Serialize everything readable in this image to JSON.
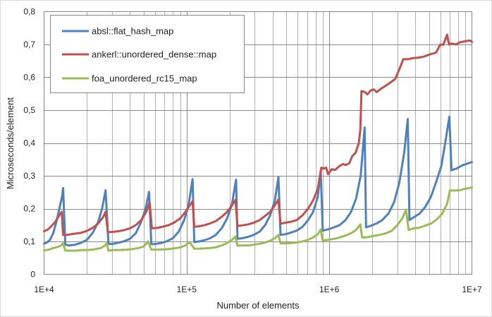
{
  "chart_data": {
    "type": "line",
    "title": "",
    "xlabel": "Number of elements",
    "ylabel": "Microseconds/element",
    "xscale": "log",
    "xlim": [
      10000,
      10000000
    ],
    "ylim": [
      0,
      0.8
    ],
    "yticks": [
      "0",
      "0,1",
      "0,2",
      "0,3",
      "0,4",
      "0,5",
      "0,6",
      "0,7",
      "0,8"
    ],
    "xticks": [
      {
        "value": 10000,
        "label": "1E+4"
      },
      {
        "value": 100000,
        "label": "1E+5"
      },
      {
        "value": 1000000,
        "label": "1E+6"
      },
      {
        "value": 10000000,
        "label": "1E+7"
      }
    ],
    "grid": true,
    "legend_position": "top-left",
    "series": [
      {
        "name": "absl::flat_hash_map",
        "color": "#4f81bd",
        "points": [
          [
            10000,
            0.093
          ],
          [
            10500,
            0.097
          ],
          [
            11000,
            0.105
          ],
          [
            11600,
            0.125
          ],
          [
            12200,
            0.16
          ],
          [
            12800,
            0.2
          ],
          [
            13400,
            0.238
          ],
          [
            13600,
            0.263
          ],
          [
            14100,
            0.09
          ],
          [
            15000,
            0.088
          ],
          [
            16500,
            0.09
          ],
          [
            18000,
            0.095
          ],
          [
            20000,
            0.105
          ],
          [
            22000,
            0.127
          ],
          [
            24000,
            0.16
          ],
          [
            25500,
            0.2
          ],
          [
            27000,
            0.256
          ],
          [
            28300,
            0.093
          ],
          [
            30000,
            0.092
          ],
          [
            33000,
            0.096
          ],
          [
            36000,
            0.1
          ],
          [
            40000,
            0.108
          ],
          [
            44000,
            0.125
          ],
          [
            48000,
            0.16
          ],
          [
            51500,
            0.2
          ],
          [
            54500,
            0.251
          ],
          [
            56500,
            0.092
          ],
          [
            60000,
            0.092
          ],
          [
            66000,
            0.095
          ],
          [
            72000,
            0.1
          ],
          [
            80000,
            0.11
          ],
          [
            88000,
            0.13
          ],
          [
            96000,
            0.165
          ],
          [
            103000,
            0.21
          ],
          [
            110000,
            0.29
          ],
          [
            113000,
            0.098
          ],
          [
            122000,
            0.1
          ],
          [
            134000,
            0.104
          ],
          [
            146000,
            0.11
          ],
          [
            160000,
            0.12
          ],
          [
            176000,
            0.14
          ],
          [
            192000,
            0.17
          ],
          [
            208000,
            0.215
          ],
          [
            222000,
            0.288
          ],
          [
            227000,
            0.108
          ],
          [
            245000,
            0.11
          ],
          [
            270000,
            0.114
          ],
          [
            295000,
            0.12
          ],
          [
            325000,
            0.13
          ],
          [
            355000,
            0.15
          ],
          [
            385000,
            0.18
          ],
          [
            415000,
            0.225
          ],
          [
            440000,
            0.296
          ],
          [
            455000,
            0.12
          ],
          [
            490000,
            0.122
          ],
          [
            540000,
            0.127
          ],
          [
            590000,
            0.133
          ],
          [
            650000,
            0.145
          ],
          [
            710000,
            0.165
          ],
          [
            770000,
            0.19
          ],
          [
            830000,
            0.235
          ],
          [
            870000,
            0.315
          ],
          [
            900000,
            0.133
          ],
          [
            980000,
            0.137
          ],
          [
            1080000,
            0.143
          ],
          [
            1180000,
            0.15
          ],
          [
            1300000,
            0.165
          ],
          [
            1420000,
            0.19
          ],
          [
            1540000,
            0.23
          ],
          [
            1660000,
            0.3
          ],
          [
            1770000,
            0.447
          ],
          [
            1810000,
            0.143
          ],
          [
            1960000,
            0.148
          ],
          [
            2150000,
            0.155
          ],
          [
            2350000,
            0.165
          ],
          [
            2600000,
            0.185
          ],
          [
            2850000,
            0.22
          ],
          [
            3100000,
            0.28
          ],
          [
            3350000,
            0.37
          ],
          [
            3550000,
            0.473
          ],
          [
            3650000,
            0.165
          ],
          [
            3950000,
            0.175
          ],
          [
            4300000,
            0.185
          ],
          [
            4700000,
            0.205
          ],
          [
            5150000,
            0.235
          ],
          [
            5600000,
            0.28
          ],
          [
            6100000,
            0.33
          ],
          [
            6500000,
            0.4
          ],
          [
            6950000,
            0.48
          ],
          [
            7200000,
            0.317
          ],
          [
            7800000,
            0.322
          ],
          [
            8600000,
            0.332
          ],
          [
            9400000,
            0.338
          ],
          [
            10000000,
            0.342
          ]
        ]
      },
      {
        "name": "ankerl::unordered_dense::map",
        "color": "#c0504d",
        "points": [
          [
            10000,
            0.131
          ],
          [
            10600,
            0.136
          ],
          [
            11300,
            0.147
          ],
          [
            12000,
            0.16
          ],
          [
            12800,
            0.18
          ],
          [
            13300,
            0.19
          ],
          [
            13600,
            0.12
          ],
          [
            14500,
            0.12
          ],
          [
            16000,
            0.123
          ],
          [
            18000,
            0.126
          ],
          [
            20000,
            0.132
          ],
          [
            22000,
            0.142
          ],
          [
            24000,
            0.155
          ],
          [
            26000,
            0.175
          ],
          [
            27000,
            0.19
          ],
          [
            28000,
            0.128
          ],
          [
            30000,
            0.129
          ],
          [
            33000,
            0.131
          ],
          [
            36000,
            0.134
          ],
          [
            40000,
            0.14
          ],
          [
            44000,
            0.15
          ],
          [
            48000,
            0.165
          ],
          [
            52000,
            0.19
          ],
          [
            55000,
            0.22
          ],
          [
            57000,
            0.14
          ],
          [
            62000,
            0.141
          ],
          [
            68000,
            0.145
          ],
          [
            75000,
            0.15
          ],
          [
            82000,
            0.158
          ],
          [
            90000,
            0.17
          ],
          [
            98000,
            0.19
          ],
          [
            105000,
            0.21
          ],
          [
            110000,
            0.222
          ],
          [
            113000,
            0.145
          ],
          [
            122000,
            0.146
          ],
          [
            134000,
            0.15
          ],
          [
            146000,
            0.155
          ],
          [
            160000,
            0.162
          ],
          [
            176000,
            0.175
          ],
          [
            192000,
            0.19
          ],
          [
            208000,
            0.21
          ],
          [
            220000,
            0.227
          ],
          [
            227000,
            0.147
          ],
          [
            245000,
            0.149
          ],
          [
            270000,
            0.152
          ],
          [
            295000,
            0.157
          ],
          [
            325000,
            0.165
          ],
          [
            355000,
            0.178
          ],
          [
            385000,
            0.19
          ],
          [
            415000,
            0.21
          ],
          [
            440000,
            0.228
          ],
          [
            455000,
            0.154
          ],
          [
            490000,
            0.157
          ],
          [
            540000,
            0.16
          ],
          [
            590000,
            0.165
          ],
          [
            650000,
            0.18
          ],
          [
            710000,
            0.2
          ],
          [
            770000,
            0.225
          ],
          [
            830000,
            0.26
          ],
          [
            880000,
            0.325
          ],
          [
            910000,
            0.322
          ],
          [
            950000,
            0.325
          ],
          [
            980000,
            0.305
          ],
          [
            1040000,
            0.32
          ],
          [
            1100000,
            0.318
          ],
          [
            1180000,
            0.33
          ],
          [
            1250000,
            0.336
          ],
          [
            1300000,
            0.333
          ],
          [
            1380000,
            0.338
          ],
          [
            1450000,
            0.36
          ],
          [
            1530000,
            0.37
          ],
          [
            1610000,
            0.4
          ],
          [
            1650000,
            0.44
          ],
          [
            1680000,
            0.558
          ],
          [
            1780000,
            0.555
          ],
          [
            1850000,
            0.548
          ],
          [
            1950000,
            0.56
          ],
          [
            2050000,
            0.563
          ],
          [
            2150000,
            0.555
          ],
          [
            2300000,
            0.565
          ],
          [
            2500000,
            0.575
          ],
          [
            2700000,
            0.585
          ],
          [
            2900000,
            0.595
          ],
          [
            3100000,
            0.625
          ],
          [
            3300000,
            0.655
          ],
          [
            3550000,
            0.655
          ],
          [
            3800000,
            0.658
          ],
          [
            4200000,
            0.66
          ],
          [
            4600000,
            0.663
          ],
          [
            5100000,
            0.67
          ],
          [
            5600000,
            0.675
          ],
          [
            6000000,
            0.7
          ],
          [
            6300000,
            0.699
          ],
          [
            6700000,
            0.73
          ],
          [
            6900000,
            0.7
          ],
          [
            7200000,
            0.703
          ],
          [
            7700000,
            0.7
          ],
          [
            8300000,
            0.707
          ],
          [
            9000000,
            0.71
          ],
          [
            9700000,
            0.712
          ],
          [
            10000000,
            0.708
          ]
        ]
      },
      {
        "name": "foa_unordered_rc15_map",
        "color": "#9bbb59",
        "points": [
          [
            10000,
            0.073
          ],
          [
            10800,
            0.075
          ],
          [
            11600,
            0.08
          ],
          [
            12400,
            0.083
          ],
          [
            13200,
            0.088
          ],
          [
            13600,
            0.095
          ],
          [
            14100,
            0.072
          ],
          [
            15500,
            0.072
          ],
          [
            17000,
            0.072
          ],
          [
            18500,
            0.074
          ],
          [
            20500,
            0.074
          ],
          [
            22500,
            0.076
          ],
          [
            25000,
            0.08
          ],
          [
            26800,
            0.088
          ],
          [
            27500,
            0.095
          ],
          [
            28300,
            0.072
          ],
          [
            31000,
            0.074
          ],
          [
            34000,
            0.074
          ],
          [
            38000,
            0.075
          ],
          [
            42000,
            0.077
          ],
          [
            46000,
            0.08
          ],
          [
            50000,
            0.085
          ],
          [
            53500,
            0.1
          ],
          [
            56500,
            0.075
          ],
          [
            62000,
            0.075
          ],
          [
            68000,
            0.076
          ],
          [
            75000,
            0.077
          ],
          [
            82000,
            0.079
          ],
          [
            90000,
            0.082
          ],
          [
            98000,
            0.088
          ],
          [
            105000,
            0.098
          ],
          [
            113000,
            0.078
          ],
          [
            122000,
            0.078
          ],
          [
            134000,
            0.079
          ],
          [
            146000,
            0.08
          ],
          [
            160000,
            0.082
          ],
          [
            176000,
            0.088
          ],
          [
            192000,
            0.095
          ],
          [
            208000,
            0.105
          ],
          [
            220000,
            0.115
          ],
          [
            227000,
            0.087
          ],
          [
            245000,
            0.088
          ],
          [
            270000,
            0.088
          ],
          [
            295000,
            0.09
          ],
          [
            325000,
            0.093
          ],
          [
            355000,
            0.097
          ],
          [
            385000,
            0.102
          ],
          [
            415000,
            0.11
          ],
          [
            440000,
            0.12
          ],
          [
            455000,
            0.094
          ],
          [
            490000,
            0.094
          ],
          [
            540000,
            0.095
          ],
          [
            590000,
            0.097
          ],
          [
            650000,
            0.1
          ],
          [
            710000,
            0.105
          ],
          [
            770000,
            0.112
          ],
          [
            830000,
            0.122
          ],
          [
            870000,
            0.136
          ],
          [
            900000,
            0.103
          ],
          [
            980000,
            0.105
          ],
          [
            1080000,
            0.108
          ],
          [
            1180000,
            0.112
          ],
          [
            1300000,
            0.118
          ],
          [
            1420000,
            0.125
          ],
          [
            1540000,
            0.135
          ],
          [
            1650000,
            0.152
          ],
          [
            1700000,
            0.112
          ],
          [
            1850000,
            0.113
          ],
          [
            2050000,
            0.117
          ],
          [
            2250000,
            0.12
          ],
          [
            2500000,
            0.125
          ],
          [
            2750000,
            0.133
          ],
          [
            3000000,
            0.15
          ],
          [
            3250000,
            0.17
          ],
          [
            3450000,
            0.197
          ],
          [
            3600000,
            0.135
          ],
          [
            3900000,
            0.14
          ],
          [
            4300000,
            0.142
          ],
          [
            4700000,
            0.148
          ],
          [
            5200000,
            0.155
          ],
          [
            5700000,
            0.168
          ],
          [
            6200000,
            0.185
          ],
          [
            6700000,
            0.215
          ],
          [
            7000000,
            0.255
          ],
          [
            7500000,
            0.255
          ],
          [
            8200000,
            0.256
          ],
          [
            8800000,
            0.26
          ],
          [
            9400000,
            0.262
          ],
          [
            10000000,
            0.265
          ]
        ]
      }
    ]
  }
}
